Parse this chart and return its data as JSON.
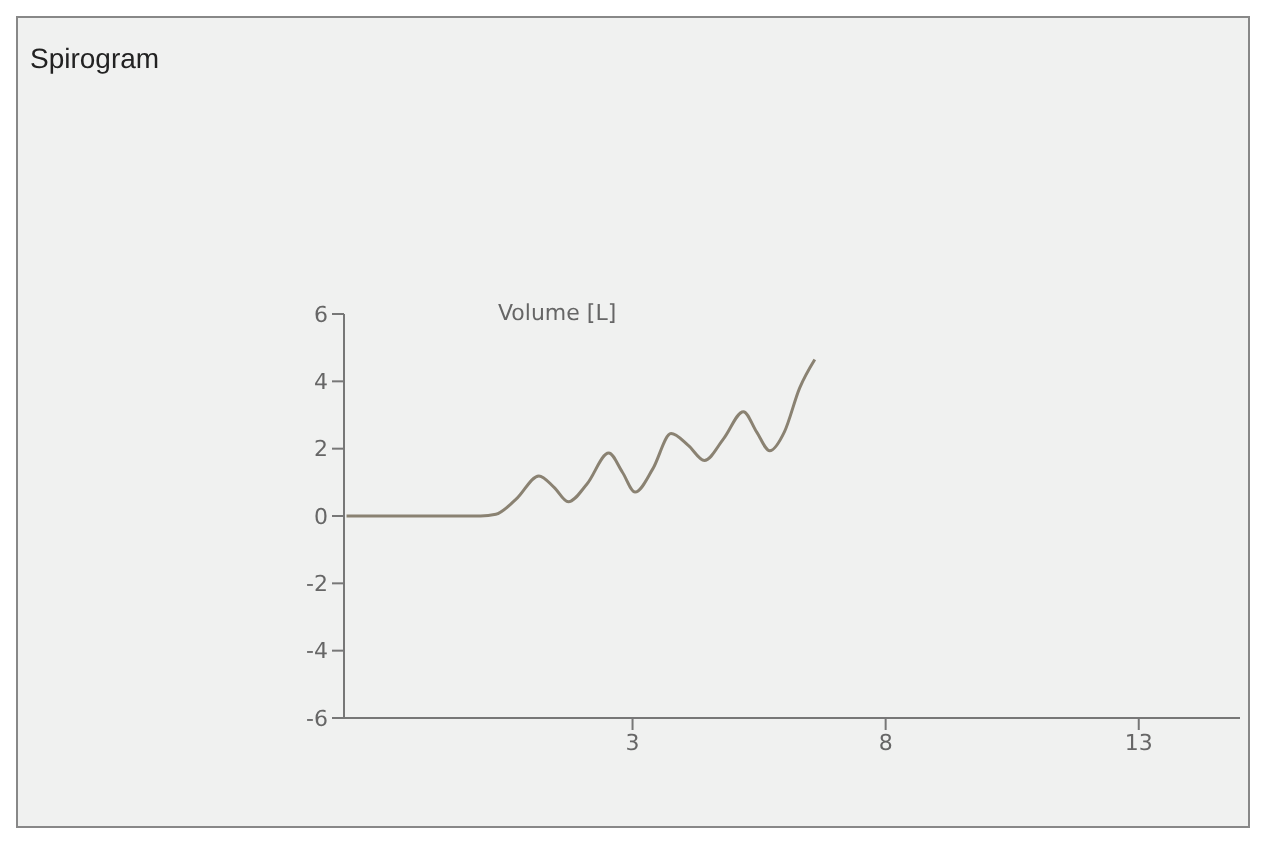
{
  "chart_data": {
    "type": "line",
    "title": "Spirogram",
    "ylabel": "Volume [L]",
    "x": [
      -2.65,
      0,
      0.3,
      0.7,
      1.15,
      1.45,
      1.73,
      2.1,
      2.53,
      2.8,
      3.05,
      3.4,
      3.76,
      4.1,
      4.42,
      4.8,
      5.19,
      5.45,
      5.71,
      6.0,
      6.3,
      6.6
    ],
    "series": [
      {
        "color": "#8a8272",
        "values": [
          0,
          0,
          0.05,
          0.5,
          1.19,
          0.85,
          0.42,
          0.95,
          1.87,
          1.3,
          0.71,
          1.4,
          2.45,
          2.1,
          1.65,
          2.3,
          3.1,
          2.5,
          1.94,
          2.5,
          3.8,
          4.65
        ]
      }
    ],
    "xlim": [
      -2.7,
      15
    ],
    "xticks": [
      3,
      8,
      13
    ],
    "ylim": [
      -6,
      6
    ],
    "yticks": [
      -6,
      -4,
      -2,
      0,
      2,
      4,
      6
    ],
    "grid": false,
    "legend": false,
    "marker": "none",
    "line_style": "solid"
  }
}
